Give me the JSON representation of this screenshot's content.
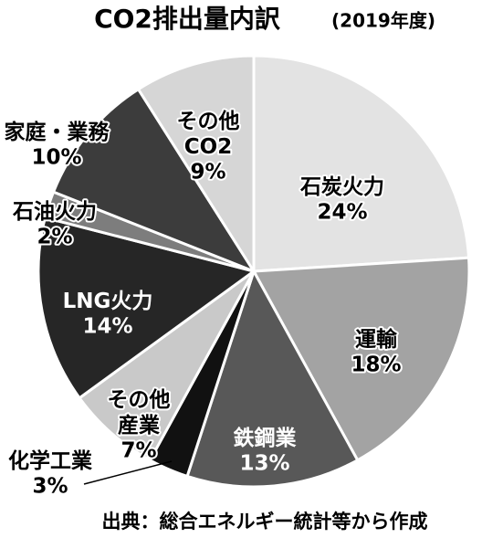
{
  "chart_data": {
    "type": "pie",
    "title": "CO2排出量内訳",
    "subtitle": "(2019年度)",
    "categories": [
      "石炭火力",
      "運輸",
      "鉄鋼業",
      "化学工業",
      "その他\n産業",
      "LNG火力",
      "石油火力",
      "家庭・業務",
      "その他\nCO2"
    ],
    "values": [
      24,
      18,
      13,
      3,
      7,
      14,
      2,
      10,
      9
    ],
    "value_labels": [
      "24%",
      "18%",
      "13%",
      "3%",
      "7%",
      "14%",
      "2%",
      "10%",
      "9%"
    ],
    "colors": [
      "#e3e3e3",
      "#a3a3a3",
      "#585858",
      "#111111",
      "#c9c9c9",
      "#262626",
      "#7d7d7d",
      "#3c3c3c",
      "#d6d6d6"
    ],
    "source": "出典：総合エネルギー統計等から作成"
  }
}
